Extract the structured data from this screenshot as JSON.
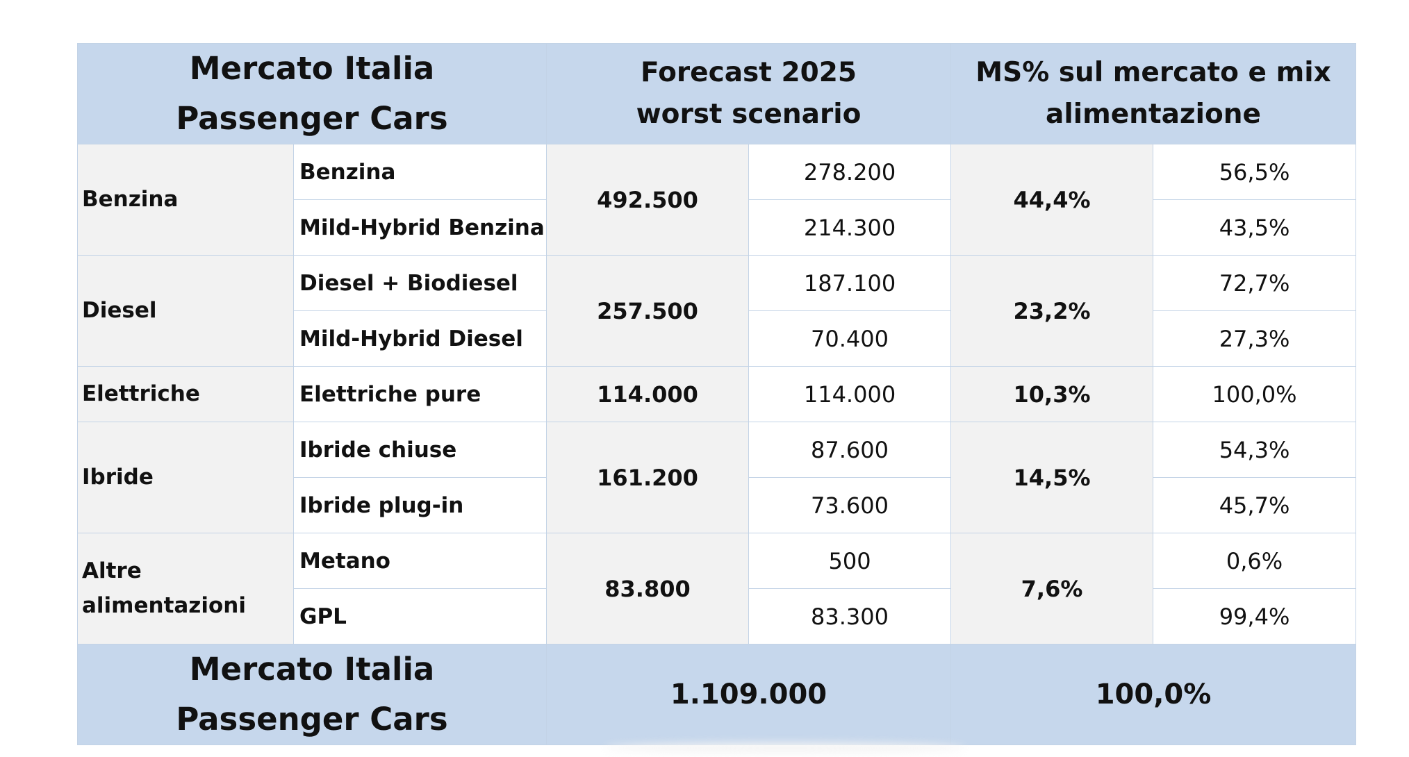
{
  "header": {
    "title_line1": "Mercato Italia",
    "title_line2": "Passenger Cars",
    "forecast_line1": "Forecast 2025",
    "forecast_line2": "worst scenario",
    "ms_line1": "MS% sul mercato e mix",
    "ms_line2": "alimentazione"
  },
  "groups": [
    {
      "category_lines": [
        "Benzina"
      ],
      "total": "492.500",
      "share": "44,4%",
      "rows": [
        {
          "label": "Benzina",
          "volume": "278.200",
          "mix": "56,5%"
        },
        {
          "label": "Mild-Hybrid Benzina",
          "volume": "214.300",
          "mix": "43,5%"
        }
      ]
    },
    {
      "category_lines": [
        "Diesel"
      ],
      "total": "257.500",
      "share": "23,2%",
      "rows": [
        {
          "label": "Diesel + Biodiesel",
          "volume": "187.100",
          "mix": "72,7%"
        },
        {
          "label": "Mild-Hybrid Diesel",
          "volume": "70.400",
          "mix": "27,3%"
        }
      ]
    },
    {
      "category_lines": [
        "Elettriche"
      ],
      "total": "114.000",
      "share": "10,3%",
      "rows": [
        {
          "label": "Elettriche pure",
          "volume": "114.000",
          "mix": "100,0%"
        }
      ]
    },
    {
      "category_lines": [
        "Ibride"
      ],
      "total": "161.200",
      "share": "14,5%",
      "rows": [
        {
          "label": "Ibride chiuse",
          "volume": "87.600",
          "mix": "54,3%"
        },
        {
          "label": "Ibride plug-in",
          "volume": "73.600",
          "mix": "45,7%"
        }
      ]
    },
    {
      "category_lines": [
        "Altre",
        "alimentazioni"
      ],
      "total": "83.800",
      "share": "7,6%",
      "rows": [
        {
          "label": "Metano",
          "volume": "500",
          "mix": "0,6%"
        },
        {
          "label": "GPL",
          "volume": "83.300",
          "mix": "99,4%"
        }
      ]
    }
  ],
  "footer": {
    "title_line1": "Mercato Italia",
    "title_line2": "Passenger Cars",
    "total": "1.109.000",
    "share": "100,0%"
  },
  "colors": {
    "header_bg": "#c6d7ec",
    "category_bg": "#f2f2f2",
    "border": "#c3d3e6"
  }
}
